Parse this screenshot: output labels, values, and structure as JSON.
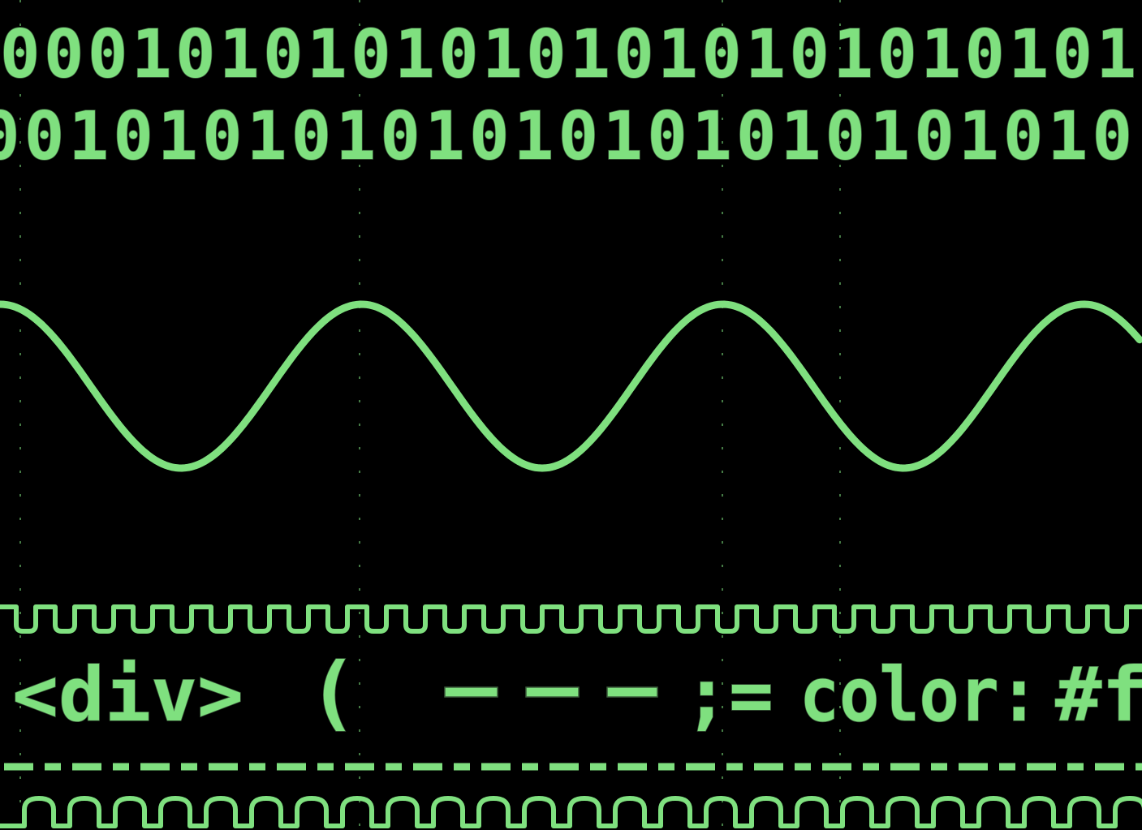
{
  "binary": {
    "row_1": "00010101010101010101010101",
    "row_2": "00101010101010101010101010"
  },
  "code": {
    "tag": "<div>",
    "paren": "(",
    "operator": ";=",
    "property": "color:",
    "value": "#f"
  }
}
